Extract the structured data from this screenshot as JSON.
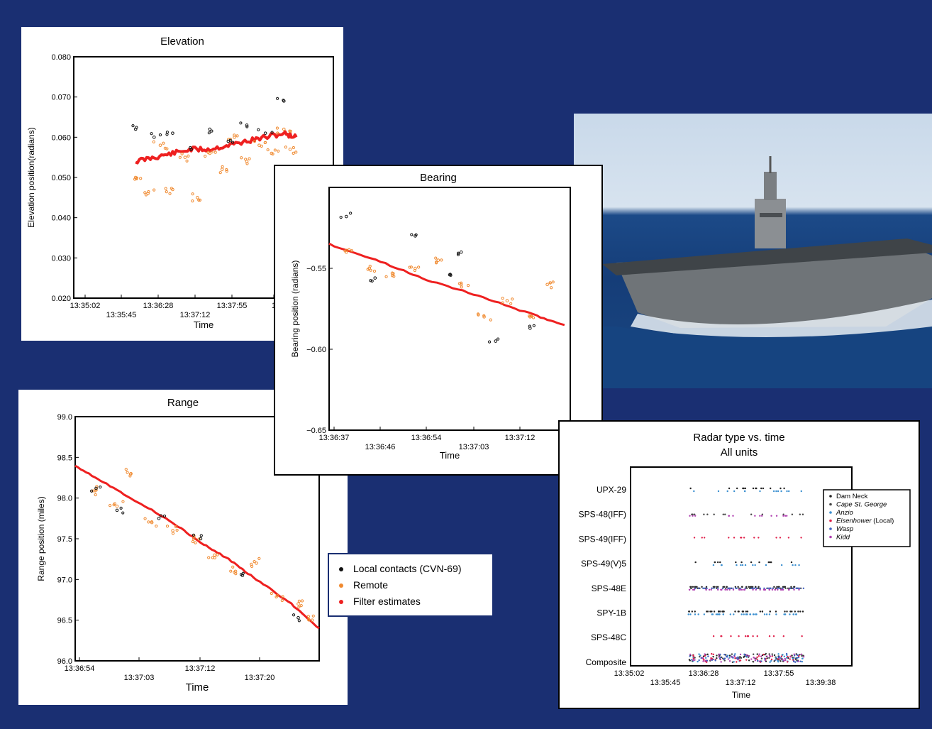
{
  "charts": {
    "elevation": {
      "title": "Elevation",
      "xlabel": "Time",
      "ylabel": "Elevation position(radians)",
      "yticks": [
        "0.080",
        "0.070",
        "0.060",
        "0.050",
        "0.040",
        "0.030",
        "0.020"
      ],
      "xticks": [
        "13:35:02",
        "13:35:45",
        "13:36:28",
        "13:37:12",
        "13:37:55",
        "1"
      ]
    },
    "bearing": {
      "title": "Bearing",
      "xlabel": "Time",
      "ylabel": "Bearing position (radians)",
      "yticks": [
        "−0.55",
        "−0.60",
        "−0.65"
      ],
      "xticks": [
        "13:36:37",
        "13:36:46",
        "13:36:54",
        "13:37:03",
        "13:37:12"
      ]
    },
    "range": {
      "title": "Range",
      "xlabel": "Time",
      "ylabel": "Range position (miles)",
      "yticks": [
        "99.0",
        "98.5",
        "98.0",
        "97.5",
        "97.0",
        "96.5",
        "96.0"
      ],
      "xticks": [
        "13:36:54",
        "13:37:03",
        "13:37:12",
        "13:37:20"
      ]
    },
    "radar": {
      "title": "Radar type vs. time",
      "subtitle": "All units",
      "xlabel": "Time",
      "xticks": [
        "13:35:02",
        "13:35:45",
        "13:36:28",
        "13:37:12",
        "13:37:55",
        "13:39:38"
      ],
      "yticks": [
        "UPX-29",
        "SPS-48(IFF)",
        "SPS-49(IFF)",
        "SPS-49(V)5",
        "SPS-48E",
        "SPY-1B",
        "SPS-48C",
        "Composite"
      ],
      "legend": [
        {
          "name": "Dam Neck",
          "color": "#222222"
        },
        {
          "name": "Cape St. George",
          "color": "#444444"
        },
        {
          "name": "Anzio",
          "color": "#3a8fd0"
        },
        {
          "name": "Eisenhower",
          "suffix": "(Local)",
          "color": "#e0204a"
        },
        {
          "name": "Wasp",
          "color": "#4060c0"
        },
        {
          "name": "Kidd",
          "color": "#b040b0"
        }
      ]
    }
  },
  "legend": {
    "items": [
      {
        "label": "Local contacts (CVN-69)",
        "color": "#111111"
      },
      {
        "label": "Remote",
        "color": "#f08a30"
      },
      {
        "label": "Filter estimates",
        "color": "#ee2020"
      }
    ]
  },
  "photo": {
    "icon": "aircraft-carrier-photo"
  },
  "chart_data": [
    {
      "type": "scatter",
      "title": "Elevation",
      "xlabel": "Time",
      "ylabel": "Elevation position(radians)",
      "ylim": [
        0.02,
        0.08
      ],
      "series": [
        {
          "name": "Filter estimates",
          "color": "#ee2020",
          "x": [
            "13:36:00",
            "13:36:15",
            "13:36:30",
            "13:36:45",
            "13:37:00",
            "13:37:15",
            "13:37:30",
            "13:37:45",
            "13:38:00",
            "13:38:10"
          ],
          "y": [
            0.054,
            0.055,
            0.056,
            0.057,
            0.057,
            0.058,
            0.059,
            0.06,
            0.061,
            0.06
          ]
        },
        {
          "name": "Remote",
          "color": "#f08a30",
          "x": [
            "13:36:00",
            "13:36:10",
            "13:36:20",
            "13:36:30",
            "13:36:40",
            "13:36:50",
            "13:37:00",
            "13:37:10",
            "13:37:20",
            "13:37:30",
            "13:37:40",
            "13:37:50",
            "13:38:00",
            "13:38:05"
          ],
          "y": [
            0.05,
            0.046,
            0.058,
            0.047,
            0.055,
            0.045,
            0.056,
            0.052,
            0.06,
            0.054,
            0.058,
            0.056,
            0.062,
            0.057
          ]
        },
        {
          "name": "Local contacts (CVN-69)",
          "color": "#111111",
          "x": [
            "13:36:00",
            "13:36:15",
            "13:36:30",
            "13:36:45",
            "13:37:00",
            "13:37:15",
            "13:37:30",
            "13:37:45",
            "13:38:00"
          ],
          "y": [
            0.062,
            0.06,
            0.061,
            0.057,
            0.062,
            0.059,
            0.063,
            0.061,
            0.069
          ]
        }
      ]
    },
    {
      "type": "scatter",
      "title": "Bearing",
      "xlabel": "Time",
      "ylabel": "Bearing position (radians)",
      "ylim": [
        -0.65,
        -0.5
      ],
      "series": [
        {
          "name": "Filter estimates",
          "color": "#ee2020",
          "x": [
            "13:36:37",
            "13:36:46",
            "13:36:54",
            "13:37:03",
            "13:37:12",
            "13:37:18"
          ],
          "y": [
            -0.535,
            -0.546,
            -0.557,
            -0.567,
            -0.578,
            -0.585
          ]
        },
        {
          "name": "Remote",
          "color": "#f08a30",
          "x": [
            "13:36:40",
            "13:36:44",
            "13:36:48",
            "13:36:52",
            "13:36:56",
            "13:37:00",
            "13:37:04",
            "13:37:08",
            "13:37:12",
            "13:37:15"
          ],
          "y": [
            -0.54,
            -0.55,
            -0.553,
            -0.55,
            -0.545,
            -0.56,
            -0.58,
            -0.57,
            -0.58,
            -0.56
          ]
        },
        {
          "name": "Local contacts (CVN-69)",
          "color": "#111111",
          "x": [
            "13:36:40",
            "13:36:45",
            "13:36:52",
            "13:36:58",
            "13:37:00",
            "13:37:06",
            "13:37:12"
          ],
          "y": [
            -0.518,
            -0.556,
            -0.53,
            -0.554,
            -0.54,
            -0.595,
            -0.587
          ]
        }
      ]
    },
    {
      "type": "scatter",
      "title": "Range",
      "xlabel": "Time",
      "ylabel": "Range position (miles)",
      "ylim": [
        96.0,
        99.0
      ],
      "series": [
        {
          "name": "Filter estimates",
          "color": "#ee2020",
          "x": [
            "13:36:54",
            "13:36:58",
            "13:37:03",
            "13:37:08",
            "13:37:12",
            "13:37:16",
            "13:37:20",
            "13:37:25",
            "13:37:29"
          ],
          "y": [
            98.4,
            98.2,
            97.95,
            97.7,
            97.45,
            97.25,
            97.0,
            96.7,
            96.4
          ]
        },
        {
          "name": "Remote",
          "color": "#f08a30",
          "x": [
            "13:36:57",
            "13:37:00",
            "13:37:02",
            "13:37:05",
            "13:37:08",
            "13:37:11",
            "13:37:14",
            "13:37:17",
            "13:37:20",
            "13:37:23",
            "13:37:26",
            "13:37:28"
          ],
          "y": [
            98.1,
            97.9,
            98.3,
            97.7,
            97.6,
            97.5,
            97.3,
            97.1,
            97.2,
            96.8,
            96.7,
            96.5
          ]
        },
        {
          "name": "Local contacts (CVN-69)",
          "color": "#111111",
          "x": [
            "13:36:57",
            "13:37:00",
            "13:37:06",
            "13:37:12",
            "13:37:18",
            "13:37:26"
          ],
          "y": [
            98.12,
            97.85,
            97.75,
            97.5,
            97.05,
            96.53
          ]
        }
      ]
    },
    {
      "type": "scatter",
      "title": "Radar type vs. time",
      "subtitle": "All units",
      "xlabel": "Time",
      "categories": [
        "UPX-29",
        "SPS-48(IFF)",
        "SPS-49(IFF)",
        "SPS-49(V)5",
        "SPS-48E",
        "SPY-1B",
        "SPS-48C",
        "Composite"
      ],
      "xrange": [
        "13:36:28",
        "13:38:20"
      ],
      "series": [
        {
          "name": "Dam Neck",
          "color": "#222222",
          "rows": [
            "UPX-29",
            "SPS-49(V)5",
            "SPS-48E",
            "SPY-1B",
            "Composite"
          ]
        },
        {
          "name": "Cape St. George",
          "color": "#444444",
          "rows": [
            "SPS-48(IFF)",
            "SPS-48E",
            "Composite"
          ]
        },
        {
          "name": "Anzio",
          "color": "#3a8fd0",
          "rows": [
            "UPX-29",
            "SPS-49(V)5",
            "SPY-1B",
            "Composite"
          ]
        },
        {
          "name": "Eisenhower (Local)",
          "color": "#e0204a",
          "rows": [
            "SPS-49(IFF)",
            "SPS-48C",
            "Composite"
          ]
        },
        {
          "name": "Wasp",
          "color": "#4060c0",
          "rows": [
            "SPS-48E",
            "Composite"
          ]
        },
        {
          "name": "Kidd",
          "color": "#b040b0",
          "rows": [
            "SPS-48(IFF)",
            "SPS-48E",
            "Composite"
          ]
        }
      ]
    }
  ]
}
